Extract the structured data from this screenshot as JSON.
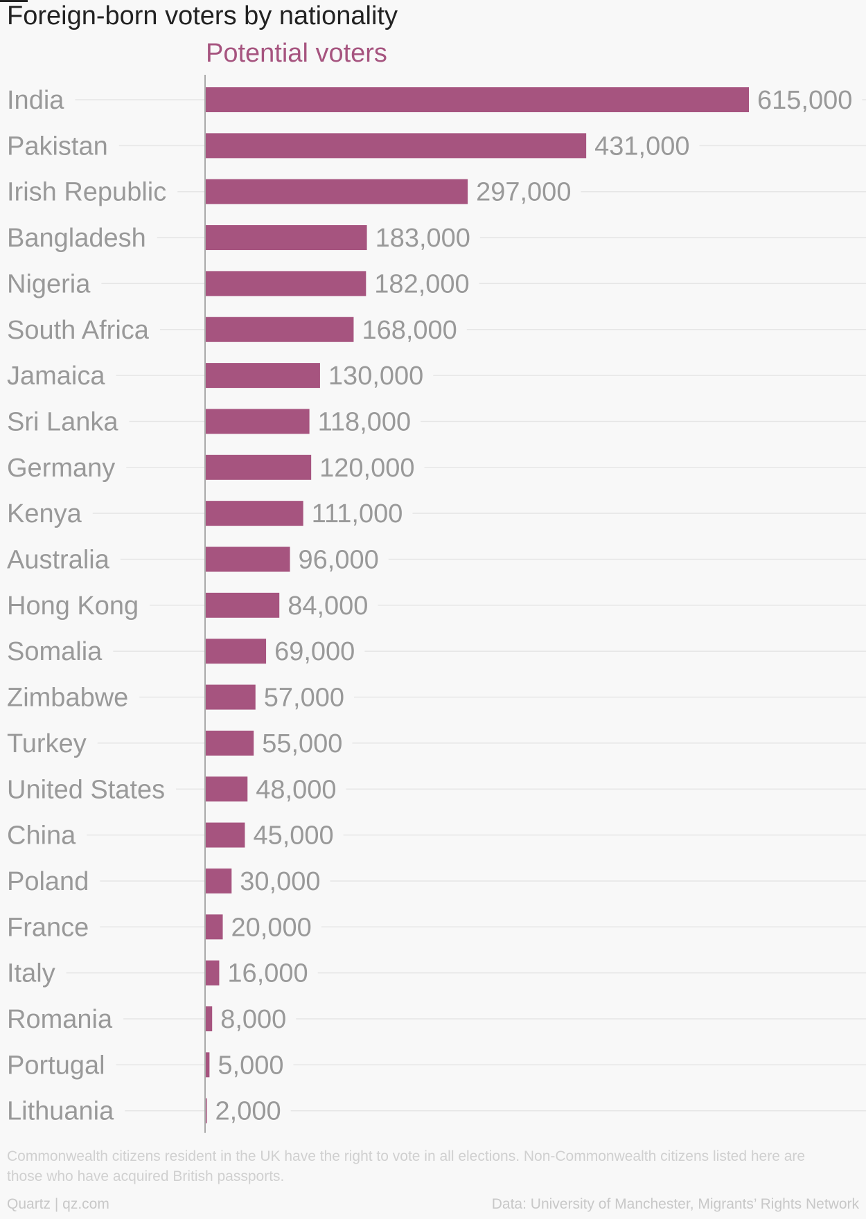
{
  "title": "Foreign-born voters by nationality",
  "series_label": "Potential voters",
  "colors": {
    "bar": "#a6547f",
    "label": "#999999",
    "grid": "#e6e6e6",
    "axis": "#aaaaaa"
  },
  "chart_data": {
    "type": "bar",
    "orientation": "horizontal",
    "title": "Foreign-born voters by nationality",
    "categories": [
      "India",
      "Pakistan",
      "Irish Republic",
      "Bangladesh",
      "Nigeria",
      "South Africa",
      "Jamaica",
      "Sri Lanka",
      "Germany",
      "Kenya",
      "Australia",
      "Hong Kong",
      "Somalia",
      "Zimbabwe",
      "Turkey",
      "United States",
      "China",
      "Poland",
      "France",
      "Italy",
      "Romania",
      "Portugal",
      "Lithuania"
    ],
    "series": [
      {
        "name": "Potential voters",
        "values": [
          615000,
          431000,
          297000,
          183000,
          182000,
          168000,
          130000,
          118000,
          120000,
          111000,
          96000,
          84000,
          69000,
          57000,
          55000,
          48000,
          45000,
          30000,
          20000,
          16000,
          8000,
          5000,
          2000
        ],
        "labels": [
          "615,000",
          "431,000",
          "297,000",
          "183,000",
          "182,000",
          "168,000",
          "130,000",
          "118,000",
          "120,000",
          "111,000",
          "96,000",
          "84,000",
          "69,000",
          "57,000",
          "55,000",
          "48,000",
          "45,000",
          "30,000",
          "20,000",
          "16,000",
          "8,000",
          "5,000",
          "2,000"
        ]
      }
    ],
    "xlim": [
      0,
      615000
    ],
    "grid": true,
    "legend": "none"
  },
  "footer": {
    "note": "Commonwealth citizens resident in the UK have the right to vote in all elections. Non-Commonwealth citizens listed here are those who have acquired British passports.",
    "credit": "Quartz | qz.com",
    "source": "Data: University of Manchester, Migrants’ Rights Network"
  }
}
